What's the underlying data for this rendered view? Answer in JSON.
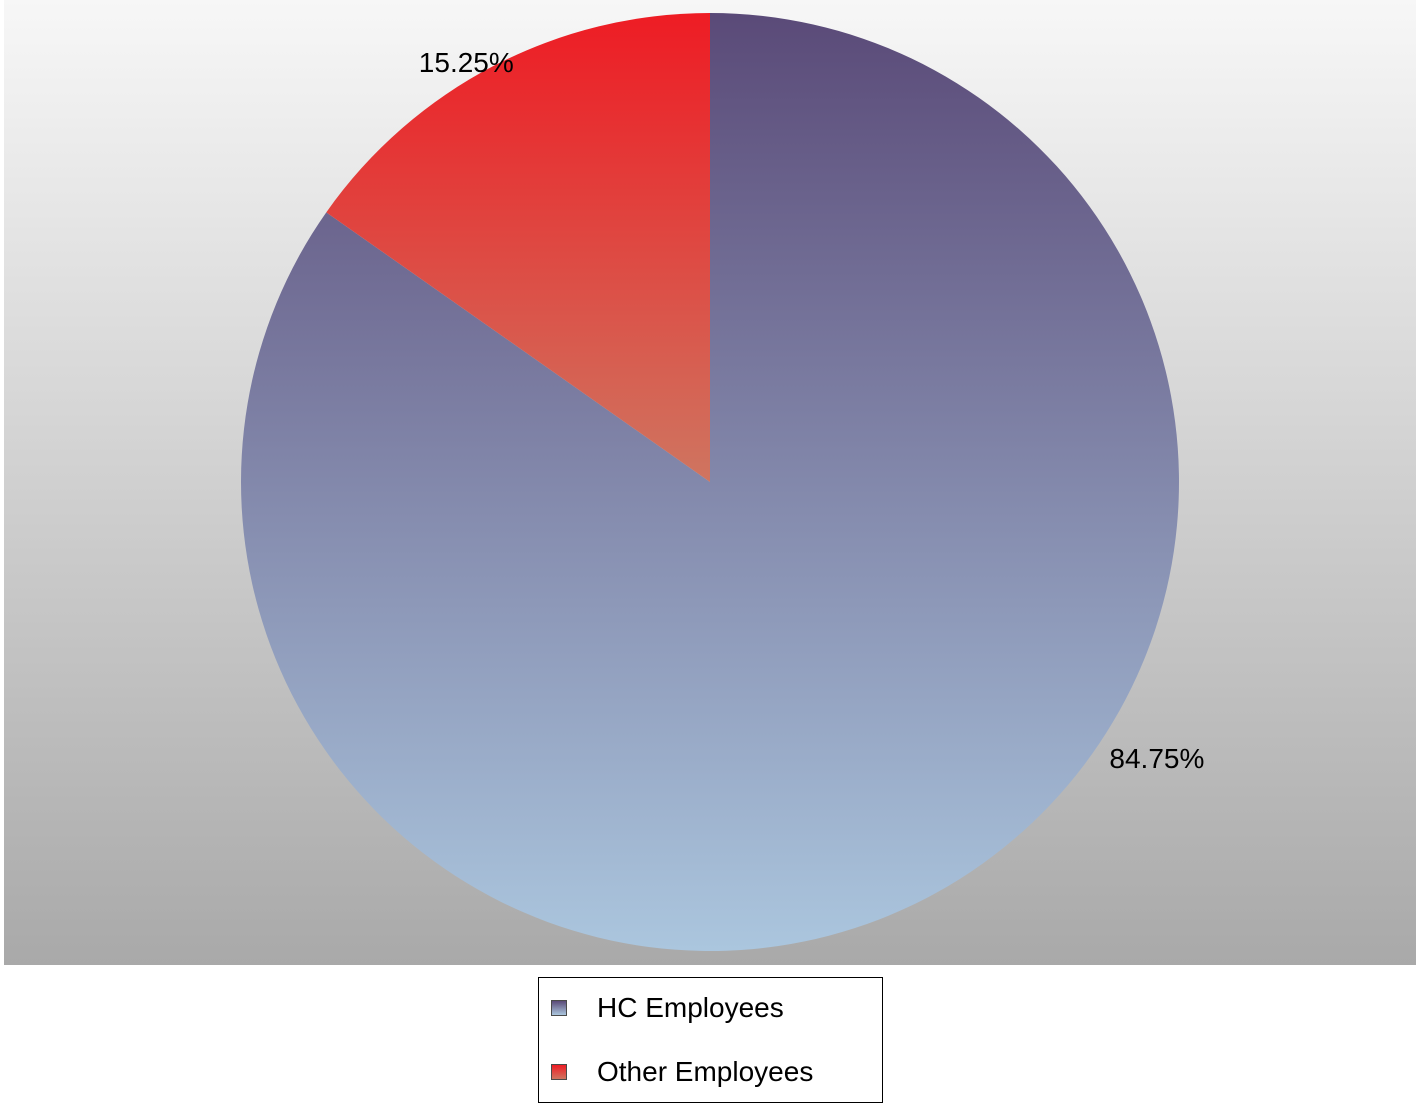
{
  "chart_data": {
    "type": "pie",
    "slices": [
      {
        "label": "HC Employees",
        "value": 84.75,
        "display": "84.75%",
        "color_top": "#5a4a78",
        "color_bottom": "#abc6de"
      },
      {
        "label": "Other Employees",
        "value": 15.25,
        "display": "15.25%",
        "color_top": "#ee1c24",
        "color_bottom": "#cf7560"
      }
    ],
    "start": "12 o'clock",
    "direction": "counter-clockwise from HC end",
    "legend_position": "bottom",
    "background": {
      "top": "#f7f7f7",
      "bottom": "#a9a9a9"
    }
  },
  "legend": {
    "items": [
      {
        "label": "HC Employees"
      },
      {
        "label": "Other Employees"
      }
    ]
  }
}
